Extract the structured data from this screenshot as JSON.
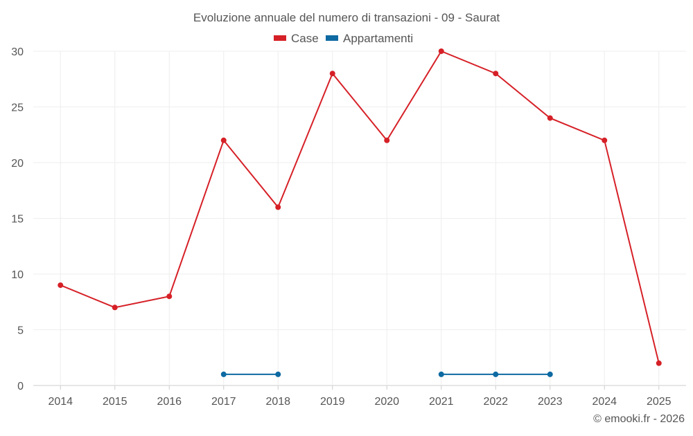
{
  "chart_data": {
    "type": "line",
    "title": "Evoluzione annuale del numero di transazioni - 09 - Saurat",
    "categories": [
      "2014",
      "2015",
      "2016",
      "2017",
      "2018",
      "2019",
      "2020",
      "2021",
      "2022",
      "2023",
      "2024",
      "2025"
    ],
    "series": [
      {
        "name": "Case",
        "color": "#d62027",
        "values": [
          9,
          7,
          8,
          22,
          16,
          28,
          22,
          30,
          28,
          24,
          22,
          2
        ]
      },
      {
        "name": "Appartamenti",
        "color": "#0e6aa2",
        "values": [
          null,
          null,
          null,
          1,
          1,
          null,
          null,
          1,
          1,
          1,
          null,
          null
        ]
      }
    ],
    "yticks": [
      "0",
      "5",
      "10",
      "15",
      "20",
      "25",
      "30"
    ],
    "ylim": [
      0,
      30
    ],
    "grid": true,
    "legend": "top-center",
    "xlabel": "",
    "ylabel": ""
  },
  "credit": "© emooki.fr - 2026"
}
